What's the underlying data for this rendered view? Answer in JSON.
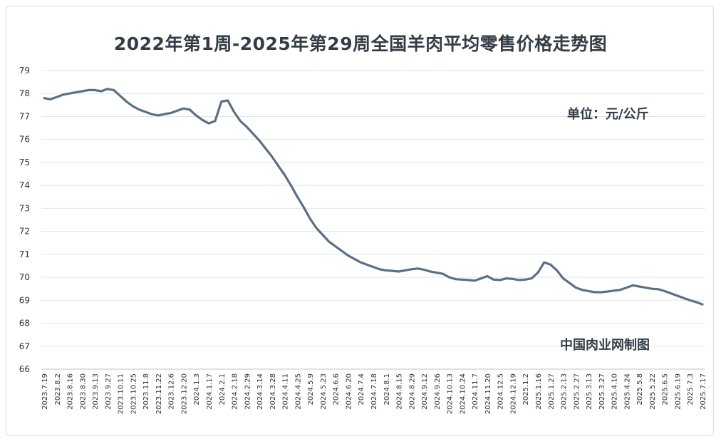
{
  "chart_data": {
    "type": "line",
    "title": "2022年第1周-2025年第29周全国羊肉平均零售价格走势图",
    "unit_label": "单位：元/公斤",
    "source_label": "中国肉业网制图",
    "ylim": [
      66,
      79
    ],
    "yticks": [
      66,
      67,
      68,
      69,
      70,
      71,
      72,
      73,
      74,
      75,
      76,
      77,
      78,
      79
    ],
    "grid": true,
    "line_color": "#5b6f86",
    "x_tick_labels": [
      "2023.7.19",
      "2023.8.2",
      "2023.8.16",
      "2023.8.30",
      "2023.9.13",
      "2023.9.27",
      "2023.10.11",
      "2023.10.25",
      "2023.11.8",
      "2023.11.22",
      "2023.12.6",
      "2023.12.20",
      "2024.1.3",
      "2024.1.17",
      "2024.2.1",
      "2024.2.18",
      "2024.2.29",
      "2024.3.14",
      "2024.3.28",
      "2024.4.11",
      "2024.4.25",
      "2024.5.9",
      "2024.5.23",
      "2024.6.6",
      "2024.6.20",
      "2024.7.4",
      "2024.7.18",
      "2024.8.1",
      "2024.8.15",
      "2024.8.29",
      "2024.9.12",
      "2024.9.26",
      "2024.10.13",
      "2024.10.24",
      "2024.11.7",
      "2024.11.20",
      "2024.12.5",
      "2024.12.19",
      "2025.1.2",
      "2025.1.16",
      "2025.1.27",
      "2025.2.13",
      "2025.2.27",
      "2025.3.13",
      "2025.3.27",
      "2025.4.10",
      "2025.4.24",
      "2025.5.8",
      "2025.5.22",
      "2025.6.5",
      "2025.6.19",
      "2025.7.3",
      "2025.7.17"
    ],
    "x": [
      "2023.7.19",
      "2023.7.26",
      "2023.8.2",
      "2023.8.9",
      "2023.8.16",
      "2023.8.23",
      "2023.8.30",
      "2023.9.6",
      "2023.9.13",
      "2023.9.20",
      "2023.9.27",
      "2023.10.4",
      "2023.10.11",
      "2023.10.18",
      "2023.10.25",
      "2023.11.1",
      "2023.11.8",
      "2023.11.15",
      "2023.11.22",
      "2023.11.29",
      "2023.12.6",
      "2023.12.13",
      "2023.12.20",
      "2023.12.27",
      "2024.1.3",
      "2024.1.10",
      "2024.1.17",
      "2024.1.24",
      "2024.2.1",
      "2024.2.8",
      "2024.2.18",
      "2024.2.22",
      "2024.2.29",
      "2024.3.7",
      "2024.3.14",
      "2024.3.21",
      "2024.3.28",
      "2024.4.4",
      "2024.4.11",
      "2024.4.18",
      "2024.4.25",
      "2024.5.2",
      "2024.5.9",
      "2024.5.16",
      "2024.5.23",
      "2024.5.30",
      "2024.6.6",
      "2024.6.13",
      "2024.6.20",
      "2024.6.27",
      "2024.7.4",
      "2024.7.11",
      "2024.7.18",
      "2024.7.25",
      "2024.8.1",
      "2024.8.8",
      "2024.8.15",
      "2024.8.22",
      "2024.8.29",
      "2024.9.5",
      "2024.9.12",
      "2024.9.19",
      "2024.9.26",
      "2024.10.6",
      "2024.10.13",
      "2024.10.17",
      "2024.10.24",
      "2024.10.31",
      "2024.11.7",
      "2024.11.14",
      "2024.11.20",
      "2024.11.28",
      "2024.12.5",
      "2024.12.12",
      "2024.12.19",
      "2024.12.26",
      "2025.1.2",
      "2025.1.9",
      "2025.1.16",
      "2025.1.22",
      "2025.1.27",
      "2025.2.6",
      "2025.2.13",
      "2025.2.20",
      "2025.2.27",
      "2025.3.6",
      "2025.3.13",
      "2025.3.20",
      "2025.3.27",
      "2025.4.3",
      "2025.4.10",
      "2025.4.17",
      "2025.4.24",
      "2025.5.1",
      "2025.5.8",
      "2025.5.15",
      "2025.5.22",
      "2025.5.29",
      "2025.6.5",
      "2025.6.12",
      "2025.6.19",
      "2025.6.26",
      "2025.7.3",
      "2025.7.10",
      "2025.7.17"
    ],
    "series": [
      {
        "values": [
          77.8,
          77.75,
          77.85,
          77.95,
          78.0,
          78.05,
          78.1,
          78.15,
          78.15,
          78.1,
          78.2,
          78.15,
          77.9,
          77.65,
          77.45,
          77.3,
          77.2,
          77.1,
          77.05,
          77.1,
          77.15,
          77.25,
          77.35,
          77.3,
          77.05,
          76.85,
          76.7,
          76.8,
          77.65,
          77.7,
          77.2,
          76.8,
          76.55,
          76.25,
          75.95,
          75.6,
          75.25,
          74.85,
          74.45,
          74.0,
          73.5,
          73.05,
          72.55,
          72.15,
          71.85,
          71.55,
          71.35,
          71.15,
          70.95,
          70.8,
          70.65,
          70.55,
          70.45,
          70.35,
          70.3,
          70.28,
          70.25,
          70.3,
          70.35,
          70.38,
          70.33,
          70.25,
          70.2,
          70.15,
          70.0,
          69.92,
          69.9,
          69.88,
          69.85,
          69.95,
          70.05,
          69.9,
          69.88,
          69.95,
          69.93,
          69.88,
          69.9,
          69.95,
          70.2,
          70.65,
          70.55,
          70.3,
          69.95,
          69.75,
          69.55,
          69.45,
          69.4,
          69.35,
          69.35,
          69.38,
          69.42,
          69.45,
          69.55,
          69.65,
          69.6,
          69.55,
          69.5,
          69.48,
          69.4,
          69.3,
          69.2,
          69.1,
          69.0,
          68.92,
          68.82
        ]
      }
    ]
  }
}
